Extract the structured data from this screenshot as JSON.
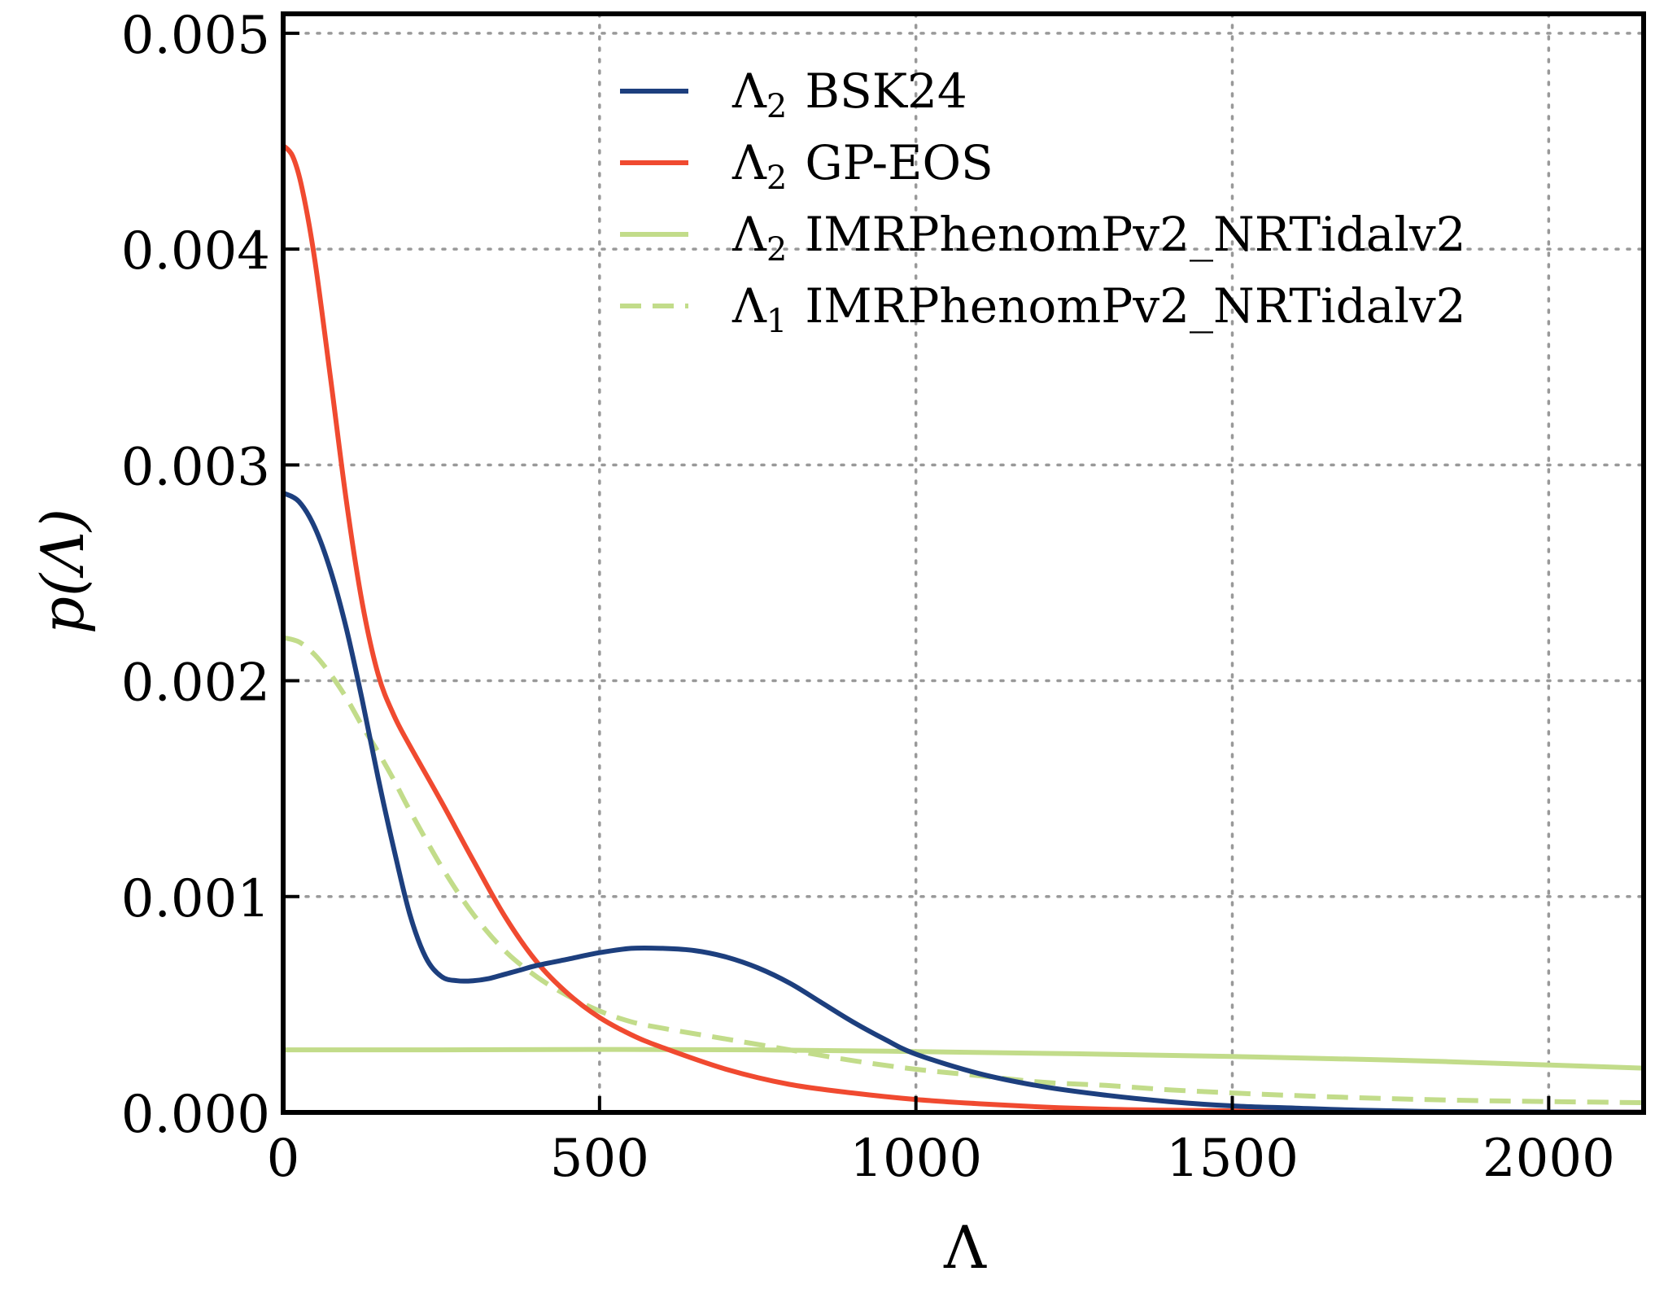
{
  "chart_data": {
    "type": "line",
    "title": "",
    "xlabel": "Λ",
    "ylabel": "p(Λ)",
    "xlim": [
      0,
      2150
    ],
    "ylim": [
      0,
      0.00509
    ],
    "xticks": [
      0,
      500,
      1000,
      1500,
      2000
    ],
    "xtick_labels": [
      "0",
      "500",
      "1000",
      "1500",
      "2000"
    ],
    "yticks": [
      0,
      0.001,
      0.002,
      0.003,
      0.004,
      0.005
    ],
    "ytick_labels": [
      "0.000",
      "0.001",
      "0.002",
      "0.003",
      "0.004",
      "0.005"
    ],
    "grid": true,
    "legend_position": "top-right",
    "series": [
      {
        "name": "BSK24",
        "legend_symbol": "Λ",
        "legend_subscript": "2",
        "legend_label": "BSK24",
        "color": "#1d3f7e",
        "dash": "solid",
        "x": [
          0,
          25,
          50,
          75,
          100,
          125,
          150,
          175,
          200,
          225,
          250,
          275,
          300,
          325,
          350,
          375,
          400,
          450,
          500,
          550,
          600,
          650,
          700,
          750,
          800,
          850,
          900,
          950,
          1000,
          1100,
          1200,
          1300,
          1400,
          1500,
          1600,
          1700,
          1800,
          1900,
          2000,
          2150
        ],
        "y": [
          0.00287,
          0.00283,
          0.00271,
          0.00251,
          0.00224,
          0.00191,
          0.00155,
          0.00122,
          0.00092,
          0.00072,
          0.00063,
          0.00061,
          0.00061,
          0.00062,
          0.00064,
          0.00066,
          0.00068,
          0.00071,
          0.00074,
          0.00076,
          0.00076,
          0.00075,
          0.00072,
          0.00067,
          0.0006,
          0.00051,
          0.00042,
          0.00034,
          0.00027,
          0.00018,
          0.00012,
          8e-05,
          5e-05,
          3e-05,
          2e-05,
          1e-05,
          5e-06,
          3e-06,
          2e-06,
          1e-06
        ]
      },
      {
        "name": "GP-EOS",
        "legend_symbol": "Λ",
        "legend_subscript": "2",
        "legend_label": "GP-EOS",
        "color": "#f04a30",
        "dash": "solid",
        "x": [
          0,
          15,
          30,
          50,
          75,
          100,
          125,
          150,
          175,
          200,
          250,
          300,
          350,
          400,
          450,
          500,
          550,
          600,
          700,
          800,
          900,
          1000,
          1100,
          1200,
          1300,
          1400,
          1500,
          1600,
          1800,
          2000,
          2150
        ],
        "y": [
          0.00448,
          0.00443,
          0.00428,
          0.00395,
          0.0034,
          0.00283,
          0.00236,
          0.00203,
          0.00184,
          0.0017,
          0.00144,
          0.00117,
          0.00091,
          0.0007,
          0.00055,
          0.00044,
          0.00036,
          0.0003,
          0.0002,
          0.00013,
          9e-05,
          6e-05,
          4e-05,
          2.5e-05,
          1.5e-05,
          1e-05,
          7e-06,
          5e-06,
          3e-06,
          2e-06,
          1e-06
        ]
      },
      {
        "name": "IMRPhenomPv2_NRTidalv2 (Λ2)",
        "legend_symbol": "Λ",
        "legend_subscript": "2",
        "legend_label": "IMRPhenomPv2_NRTidalv2",
        "color": "#c2dc8a",
        "dash": "solid",
        "x": [
          0,
          250,
          500,
          750,
          1000,
          1250,
          1500,
          1750,
          2000,
          2150
        ],
        "y": [
          0.00029,
          0.00029,
          0.000292,
          0.00029,
          0.000282,
          0.000272,
          0.000259,
          0.000243,
          0.00022,
          0.000205
        ]
      },
      {
        "name": "IMRPhenomPv2_NRTidalv2 (Λ1)",
        "legend_symbol": "Λ",
        "legend_subscript": "1",
        "legend_label": "IMRPhenomPv2_NRTidalv2",
        "color": "#c2dc8a",
        "dash": "dashed",
        "x": [
          0,
          25,
          50,
          75,
          100,
          125,
          150,
          175,
          200,
          250,
          300,
          350,
          400,
          450,
          500,
          550,
          600,
          700,
          800,
          900,
          1000,
          1100,
          1200,
          1300,
          1400,
          1500,
          1600,
          1700,
          1800,
          1900,
          2000,
          2150
        ],
        "y": [
          0.0022,
          0.00218,
          0.00212,
          0.00203,
          0.00192,
          0.00179,
          0.00167,
          0.00154,
          0.0014,
          0.00114,
          0.00092,
          0.00075,
          0.00063,
          0.00054,
          0.00047,
          0.00042,
          0.00039,
          0.00034,
          0.00029,
          0.00024,
          0.0002,
          0.00017,
          0.00014,
          0.000125,
          0.000105,
          9e-05,
          7.8e-05,
          6.8e-05,
          6e-05,
          5.4e-05,
          5e-05,
          4.5e-05
        ]
      }
    ]
  }
}
